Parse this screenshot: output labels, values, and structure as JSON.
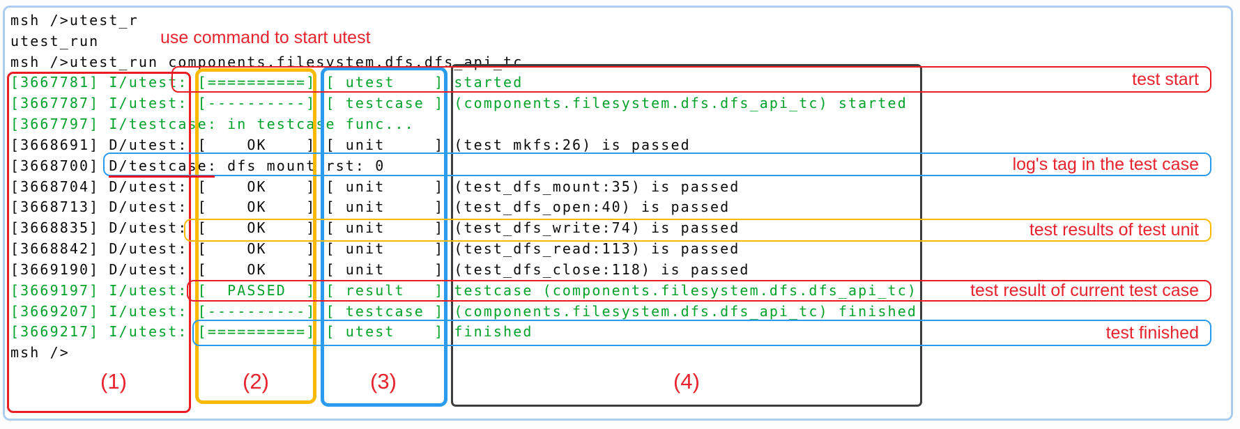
{
  "terminal": {
    "lines": [
      {
        "text": "msh />utest_r",
        "color": "black"
      },
      {
        "text": "utest_run",
        "color": "black"
      },
      {
        "text": "msh />utest_run components.filesystem.dfs.dfs_api_tc",
        "color": "black"
      },
      {
        "text": "[3667781] I/utest: [==========] [ utest    ] started",
        "color": "green"
      },
      {
        "text": "[3667787] I/utest: [----------] [ testcase ] (components.filesystem.dfs.dfs_api_tc) started",
        "color": "green"
      },
      {
        "text": "[3667797] I/testcase: in testcase func...",
        "color": "green"
      },
      {
        "text": "[3668691] D/utest: [    OK    ] [ unit     ] (test_mkfs:26) is passed",
        "color": "black"
      },
      {
        "text": "[3668700] D/testcase: dfs mount rst: 0",
        "color": "black"
      },
      {
        "text": "[3668704] D/utest: [    OK    ] [ unit     ] (test_dfs_mount:35) is passed",
        "color": "black"
      },
      {
        "text": "[3668713] D/utest: [    OK    ] [ unit     ] (test_dfs_open:40) is passed",
        "color": "black"
      },
      {
        "text": "[3668835] D/utest: [    OK    ] [ unit     ] (test_dfs_write:74) is passed",
        "color": "black"
      },
      {
        "text": "[3668842] D/utest: [    OK    ] [ unit     ] (test_dfs_read:113) is passed",
        "color": "black"
      },
      {
        "text": "[3669190] D/utest: [    OK    ] [ unit     ] (test_dfs_close:118) is passed",
        "color": "black"
      },
      {
        "text": "[3669197] I/utest: [  PASSED  ] [ result   ] testcase (components.filesystem.dfs.dfs_api_tc)",
        "color": "green"
      },
      {
        "text": "[3669207] I/utest: [----------] [ testcase ] (components.filesystem.dfs.dfs_api_tc) finished",
        "color": "green"
      },
      {
        "text": "[3669217] I/utest: [==========] [ utest    ] finished",
        "color": "green"
      },
      {
        "text": "msh />",
        "color": "black"
      }
    ]
  },
  "annotations": {
    "top_note": "use command to start utest",
    "test_start": "test start",
    "log_tag": "log's tag in the test case",
    "unit_results": "test results of test unit",
    "case_result": "test result of current test case",
    "test_finished": "test finished",
    "col1": "(1)",
    "col2": "(2)",
    "col3": "(3)",
    "col4": "(4)"
  },
  "colors": {
    "terminal_green": "#00a32a",
    "terminal_black": "#0a0a0a",
    "annotation_red": "#ea1c24",
    "annotation_orange": "#fbba00",
    "annotation_blue": "#2b9bef",
    "annotation_black": "#3d3d3d",
    "frame_border": "#aacdf0"
  }
}
